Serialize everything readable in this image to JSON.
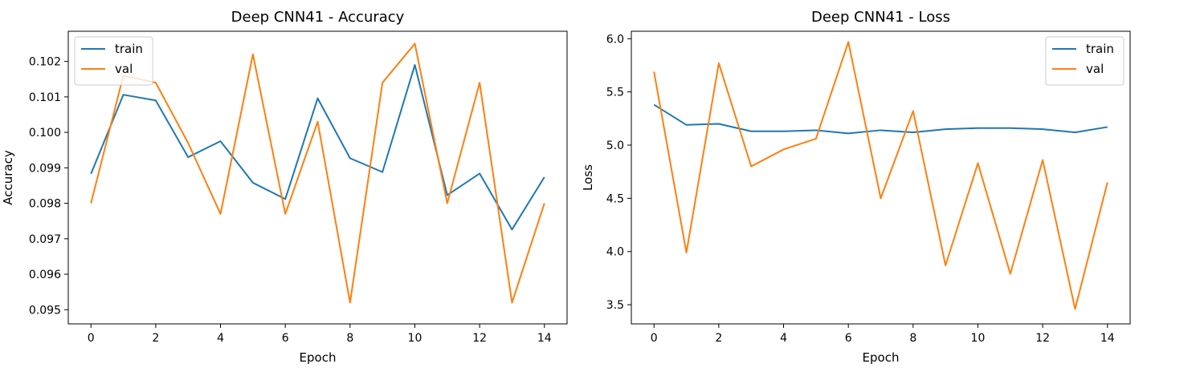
{
  "chart_data": [
    {
      "type": "line",
      "title": "Deep CNN41 - Accuracy",
      "xlabel": "Epoch",
      "ylabel": "Accuracy",
      "x": [
        0,
        1,
        2,
        3,
        4,
        5,
        6,
        7,
        8,
        9,
        10,
        11,
        12,
        13,
        14
      ],
      "xlim": [
        -0.7,
        14.7
      ],
      "ylim": [
        0.0946,
        0.10285
      ],
      "xticks": [
        0,
        2,
        4,
        6,
        8,
        10,
        12,
        14
      ],
      "xtick_labels": [
        "0",
        "2",
        "4",
        "6",
        "8",
        "10",
        "12",
        "14"
      ],
      "yticks": [
        0.095,
        0.096,
        0.097,
        0.098,
        0.099,
        0.1,
        0.101,
        0.102
      ],
      "ytick_labels": [
        "0.095",
        "0.096",
        "0.097",
        "0.098",
        "0.099",
        "0.100",
        "0.101",
        "0.102"
      ],
      "grid": false,
      "legend_position": "top-left",
      "series": [
        {
          "name": "train",
          "color": "#1f77b4",
          "values": [
            0.09883,
            0.10106,
            0.1009,
            0.0993,
            0.09975,
            0.09858,
            0.09812,
            0.10096,
            0.09927,
            0.09888,
            0.1019,
            0.09823,
            0.09884,
            0.09726,
            0.09874
          ]
        },
        {
          "name": "val",
          "color": "#ff7f0e",
          "values": [
            0.098,
            0.1016,
            0.1014,
            0.0997,
            0.0977,
            0.1022,
            0.0977,
            0.1003,
            0.0952,
            0.1014,
            0.1025,
            0.098,
            0.1014,
            0.0952,
            0.098
          ]
        }
      ]
    },
    {
      "type": "line",
      "title": "Deep CNN41 - Loss",
      "xlabel": "Epoch",
      "ylabel": "Loss",
      "x": [
        0,
        1,
        2,
        3,
        4,
        5,
        6,
        7,
        8,
        9,
        10,
        11,
        12,
        13,
        14
      ],
      "xlim": [
        -0.7,
        14.7
      ],
      "ylim": [
        3.32,
        6.07
      ],
      "xticks": [
        0,
        2,
        4,
        6,
        8,
        10,
        12,
        14
      ],
      "xtick_labels": [
        "0",
        "2",
        "4",
        "6",
        "8",
        "10",
        "12",
        "14"
      ],
      "yticks": [
        3.5,
        4.0,
        4.5,
        5.0,
        5.5,
        6.0
      ],
      "ytick_labels": [
        "3.5",
        "4.0",
        "4.5",
        "5.0",
        "5.5",
        "6.0"
      ],
      "grid": false,
      "legend_position": "top-right",
      "series": [
        {
          "name": "train",
          "color": "#1f77b4",
          "values": [
            5.38,
            5.19,
            5.2,
            5.13,
            5.13,
            5.14,
            5.11,
            5.14,
            5.12,
            5.15,
            5.16,
            5.16,
            5.15,
            5.12,
            5.17
          ]
        },
        {
          "name": "val",
          "color": "#ff7f0e",
          "values": [
            5.69,
            3.99,
            5.77,
            4.8,
            4.96,
            5.06,
            5.97,
            4.5,
            5.32,
            3.87,
            4.83,
            3.79,
            4.86,
            3.46,
            4.65
          ]
        }
      ]
    }
  ]
}
